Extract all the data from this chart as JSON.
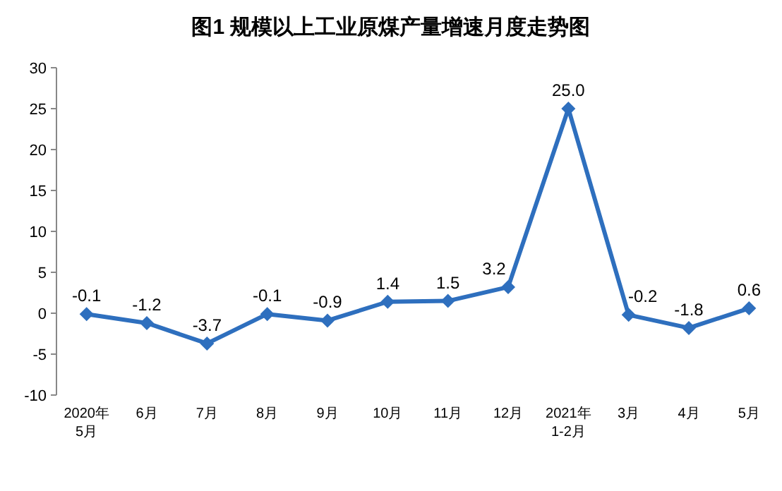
{
  "chart_data": {
    "type": "line",
    "title": "图1  规模以上工业原煤产量增速月度走势图",
    "categories": [
      "2020年\n5月",
      "6月",
      "7月",
      "8月",
      "9月",
      "10月",
      "11月",
      "12月",
      "2021年\n1-2月",
      "3月",
      "4月",
      "5月"
    ],
    "series": [
      {
        "color": "#2e6fbe",
        "values": [
          -0.1,
          -1.2,
          -3.7,
          -0.1,
          -0.9,
          1.4,
          1.5,
          3.2,
          25.0,
          -0.2,
          -1.8,
          0.6
        ],
        "value_labels": [
          "-0.1",
          "-1.2",
          "-3.7",
          "-0.1",
          "-0.9",
          "1.4",
          "1.5",
          "3.2",
          "25.0",
          "-0.2",
          "-1.8",
          "0.6"
        ]
      }
    ],
    "ylim": [
      -10,
      30
    ],
    "yticks": [
      -10,
      -5,
      0,
      5,
      10,
      15,
      20,
      25,
      30
    ],
    "marker": "diamond",
    "line_style": "solid",
    "grid": false
  }
}
